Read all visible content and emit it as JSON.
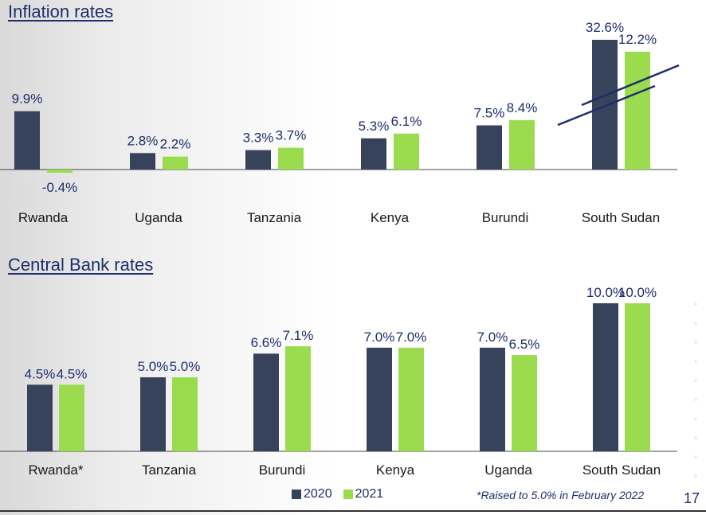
{
  "chart_data": [
    {
      "type": "bar",
      "title": "Inflation rates",
      "categories": [
        "Rwanda",
        "Uganda",
        "Tanzania",
        "Kenya",
        "Burundi",
        "South Sudan"
      ],
      "series": [
        {
          "name": "2020",
          "values": [
            9.9,
            2.8,
            3.3,
            5.3,
            7.5,
            32.6
          ],
          "labels": [
            "9.9%",
            "2.8%",
            "3.3%",
            "5.3%",
            "7.5%",
            "32.6%"
          ]
        },
        {
          "name": "2021",
          "values": [
            -0.4,
            2.2,
            3.7,
            6.1,
            8.4,
            12.2
          ],
          "labels": [
            "-0.4%",
            "2.2%",
            "3.7%",
            "6.1%",
            "8.4%",
            "12.2%"
          ]
        }
      ],
      "axis_break": {
        "category": "South Sudan"
      },
      "grid": false
    },
    {
      "type": "bar",
      "title": "Central Bank rates",
      "categories": [
        "Rwanda*",
        "Tanzania",
        "Burundi",
        "Kenya",
        "Uganda",
        "South Sudan"
      ],
      "series": [
        {
          "name": "2020",
          "values": [
            4.5,
            5.0,
            6.6,
            7.0,
            7.0,
            10.0
          ],
          "labels": [
            "4.5%",
            "5.0%",
            "6.6%",
            "7.0%",
            "7.0%",
            "10.0%"
          ]
        },
        {
          "name": "2021",
          "values": [
            4.5,
            5.0,
            7.1,
            7.0,
            6.5,
            10.0
          ],
          "labels": [
            "4.5%",
            "5.0%",
            "7.1%",
            "7.0%",
            "6.5%",
            "10.0%"
          ]
        }
      ],
      "ylim": [
        0,
        10
      ],
      "grid": false
    }
  ],
  "legend": [
    {
      "label": "2020",
      "color": "#37435a"
    },
    {
      "label": "2021",
      "color": "#9bdc4f"
    }
  ],
  "footnote": "*Raised to 5.0% in February 2022",
  "page_number": "17",
  "colors": {
    "series_2020": "#37435a",
    "series_2021": "#9bdc4f",
    "title": "#1f2d6b"
  }
}
